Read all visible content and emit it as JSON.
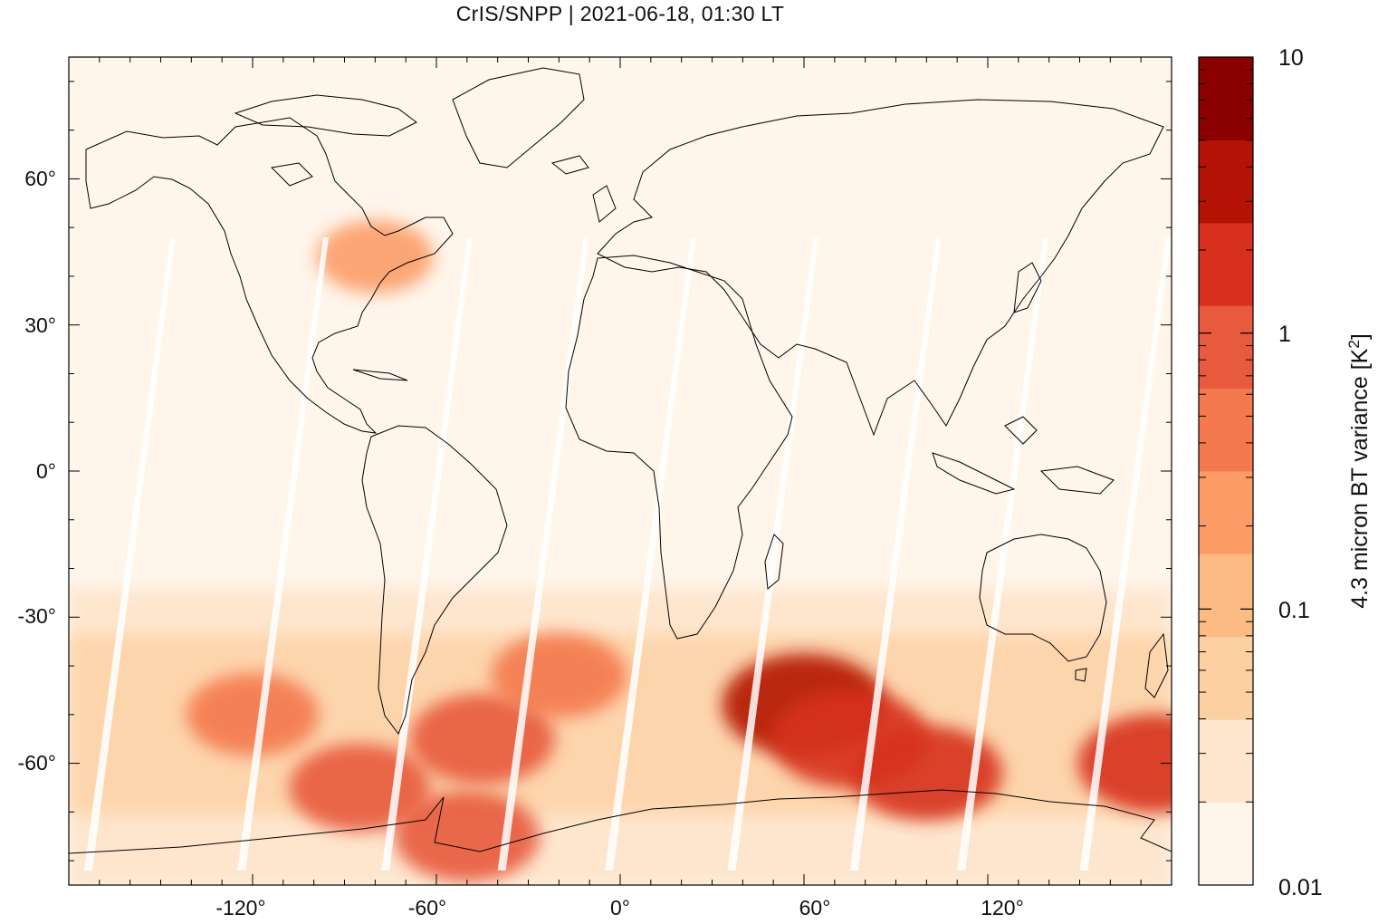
{
  "title": "CrIS/SNPP | 2021-06-18, 01:30 LT",
  "colorbar": {
    "label_prefix": "4.3 micron BT variance [K",
    "label_exp": "2",
    "label_suffix": "]",
    "tick_labels": [
      "10",
      "1",
      "0.1",
      "0.01"
    ],
    "colors": [
      "#fff5eb",
      "#fee6ce",
      "#fdd0a2",
      "#fdbb84",
      "#fc9d68",
      "#f4794e",
      "#e75a3e",
      "#d7301f",
      "#b41205",
      "#8b0000"
    ]
  },
  "axes": {
    "x_ticks": [
      "-120°",
      "-60°",
      "0°",
      "60°",
      "120°"
    ],
    "y_ticks": [
      "60°",
      "30°",
      "0°",
      "-30°",
      "-60°"
    ]
  },
  "chart_data": {
    "type": "heatmap",
    "title": "CrIS/SNPP | 2021-06-18, 01:30 LT",
    "xlim": [
      -180,
      180
    ],
    "ylim": [
      -85,
      85
    ],
    "x_ticks": [
      -120,
      -60,
      0,
      60,
      120
    ],
    "y_ticks": [
      60,
      30,
      0,
      -30,
      -60
    ],
    "colorbar_scale": "log",
    "colorbar_range": [
      0.01,
      10
    ],
    "colorbar_ticks": [
      10,
      1,
      0.1,
      0.01
    ],
    "hotspots": [
      {
        "lon": 60,
        "lat": -48,
        "value": 3
      },
      {
        "lon": 75,
        "lat": -55,
        "value": 2
      },
      {
        "lon": 100,
        "lat": -62,
        "value": 1.5
      },
      {
        "lon": -45,
        "lat": -55,
        "value": 1
      },
      {
        "lon": -50,
        "lat": -75,
        "value": 1
      },
      {
        "lon": -85,
        "lat": -65,
        "value": 0.8
      },
      {
        "lon": 175,
        "lat": -60,
        "value": 2
      },
      {
        "lon": -20,
        "lat": -42,
        "value": 0.6
      },
      {
        "lon": -120,
        "lat": -50,
        "value": 0.5
      },
      {
        "lon": -80,
        "lat": 44,
        "value": 0.2
      }
    ]
  }
}
